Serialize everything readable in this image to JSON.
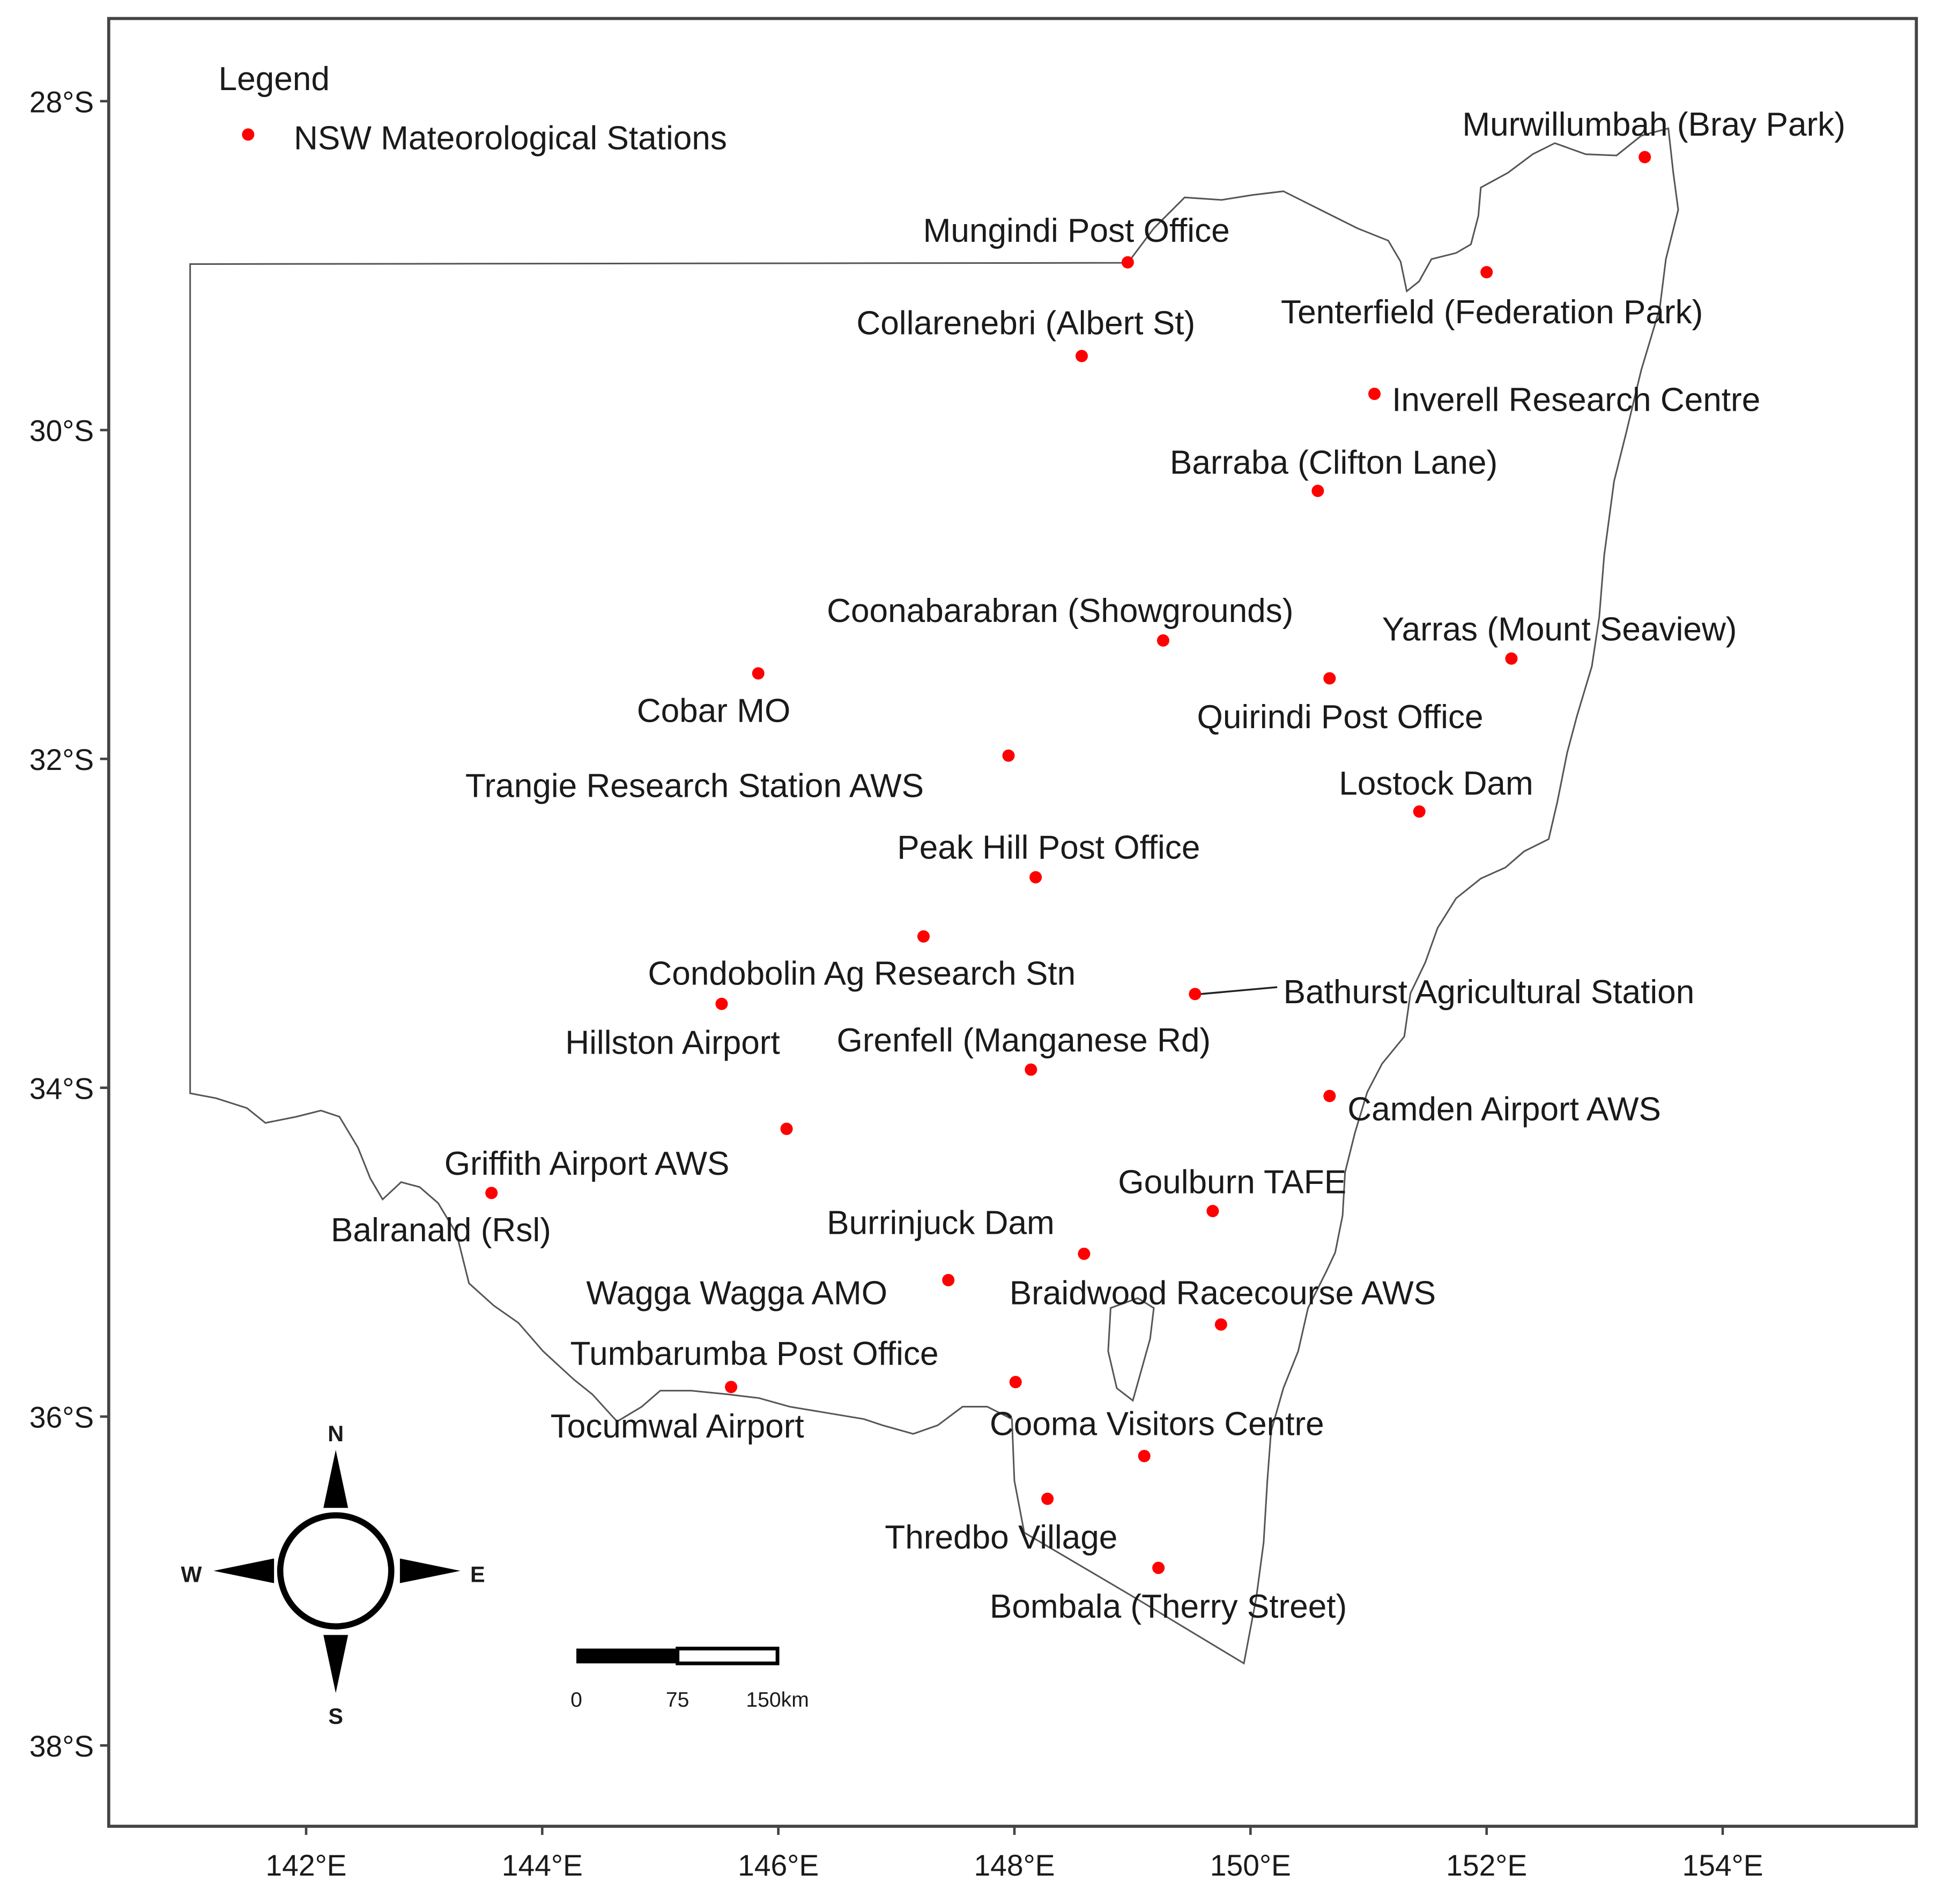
{
  "legend": {
    "title": "Legend",
    "item": "NSW Mateorological Stations",
    "color": "#ff0000"
  },
  "axes": {
    "x_ticks": [
      {
        "value": 142,
        "label": "142°E"
      },
      {
        "value": 144,
        "label": "144°E"
      },
      {
        "value": 146,
        "label": "146°E"
      },
      {
        "value": 148,
        "label": "148°E"
      },
      {
        "value": 150,
        "label": "150°E"
      },
      {
        "value": 152,
        "label": "152°E"
      },
      {
        "value": 154,
        "label": "154°E"
      }
    ],
    "y_ticks": [
      {
        "value": -28,
        "label": "28°S"
      },
      {
        "value": -30,
        "label": "30°S"
      },
      {
        "value": -32,
        "label": "32°S"
      },
      {
        "value": -34,
        "label": "34°S"
      },
      {
        "value": -36,
        "label": "36°S"
      },
      {
        "value": -38,
        "label": "38°S"
      }
    ]
  },
  "compass": {
    "n": "N",
    "e": "E",
    "s": "S",
    "w": "W"
  },
  "scale_bar": {
    "labels": [
      "0",
      "75",
      "150km"
    ]
  },
  "stations": [
    {
      "name": "Murwillumbah (Bray Park)",
      "lon": 153.34,
      "lat": -28.34
    },
    {
      "name": "Mungindi Post Office",
      "lon": 148.96,
      "lat": -28.98
    },
    {
      "name": "Collarenebri (Albert St)",
      "lon": 148.57,
      "lat": -29.55
    },
    {
      "name": "Tenterfield (Federation Park)",
      "lon": 152.0,
      "lat": -29.04
    },
    {
      "name": "Inverell Research Centre",
      "lon": 151.05,
      "lat": -29.78
    },
    {
      "name": "Barraba (Clifton Lane)",
      "lon": 150.57,
      "lat": -30.37
    },
    {
      "name": "Coonabarabran (Showgrounds)",
      "lon": 149.26,
      "lat": -31.28
    },
    {
      "name": "Yarras (Mount Seaview)",
      "lon": 152.21,
      "lat": -31.39
    },
    {
      "name": "Cobar MO",
      "lon": 145.83,
      "lat": -31.48
    },
    {
      "name": "Quirindi Post Office",
      "lon": 150.67,
      "lat": -31.51
    },
    {
      "name": "Trangie Research Station AWS",
      "lon": 147.95,
      "lat": -31.98
    },
    {
      "name": "Lostock Dam",
      "lon": 151.43,
      "lat": -32.32
    },
    {
      "name": "Peak Hill Post Office",
      "lon": 148.18,
      "lat": -32.72
    },
    {
      "name": "Condobolin Ag Research Stn",
      "lon": 147.23,
      "lat": -33.08
    },
    {
      "name": "Hillston Airport",
      "lon": 145.52,
      "lat": -33.49
    },
    {
      "name": "Bathurst Agricultural Station",
      "lon": 149.53,
      "lat": -33.43
    },
    {
      "name": "Grenfell (Manganese Rd)",
      "lon": 148.14,
      "lat": -33.89
    },
    {
      "name": "Camden Airport AWS",
      "lon": 150.67,
      "lat": -34.05
    },
    {
      "name": "Griffith Airport AWS",
      "lon": 146.07,
      "lat": -34.25
    },
    {
      "name": "Balranald (Rsl)",
      "lon": 143.57,
      "lat": -34.64
    },
    {
      "name": "Goulburn TAFE",
      "lon": 149.68,
      "lat": -34.75
    },
    {
      "name": "Burrinjuck Dam",
      "lon": 148.59,
      "lat": -35.01
    },
    {
      "name": "Wagga Wagga AMO",
      "lon": 147.44,
      "lat": -35.17
    },
    {
      "name": "Braidwood Racecourse AWS",
      "lon": 149.75,
      "lat": -35.44
    },
    {
      "name": "Tumbarumba Post Office",
      "lon": 148.01,
      "lat": -35.79
    },
    {
      "name": "Tocumwal Airport",
      "lon": 145.6,
      "lat": -35.82
    },
    {
      "name": "Cooma Visitors Centre",
      "lon": 149.1,
      "lat": -36.24
    },
    {
      "name": "Thredbo Village",
      "lon": 148.28,
      "lat": -36.5
    },
    {
      "name": "Bombala (Therry Street)",
      "lon": 149.22,
      "lat": -36.92
    }
  ]
}
